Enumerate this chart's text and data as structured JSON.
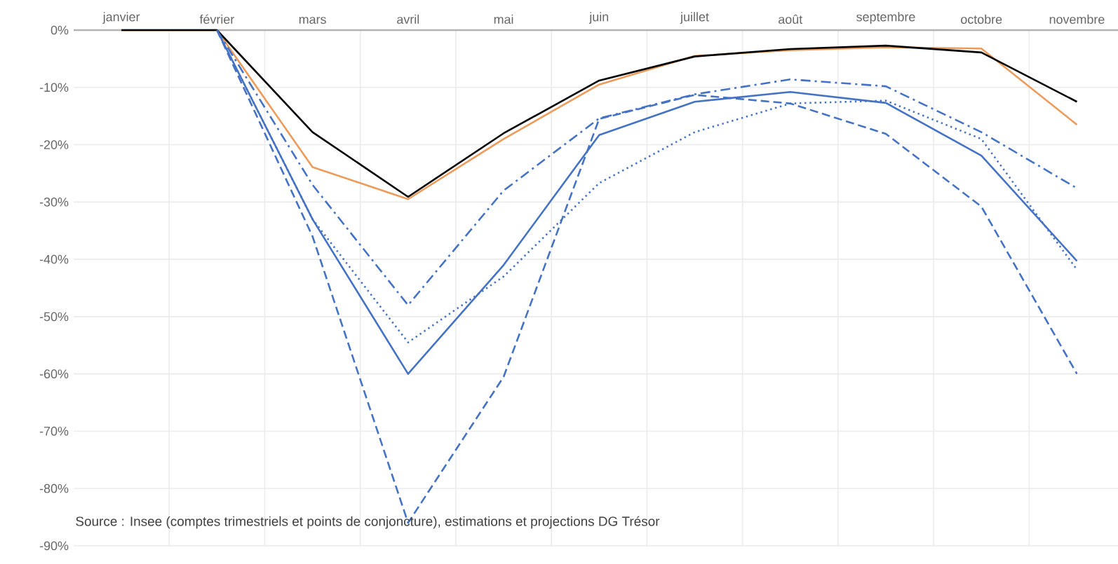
{
  "chart_data": {
    "type": "line",
    "categories": [
      "janvier",
      "février",
      "mars",
      "avril",
      "mai",
      "juin",
      "juillet",
      "août",
      "septembre",
      "octobre",
      "novembre"
    ],
    "series": [
      {
        "color": "#ed9b5a",
        "line_style": "solid",
        "values": [
          0,
          0,
          -23.9,
          -29.5,
          -19,
          -9.5,
          -4.5,
          -3.5,
          -3,
          -3.2,
          -16.5
        ]
      },
      {
        "color": "#000000",
        "line_style": "solid",
        "values": [
          0,
          0,
          -17.8,
          -29.1,
          -18,
          -8.8,
          -4.6,
          -3.3,
          -2.7,
          -3.9,
          -12.5
        ]
      },
      {
        "color": "#4472c4",
        "line_style": "solid",
        "values": [
          null,
          0,
          -33,
          -60,
          -41,
          -18.3,
          -12.5,
          -10.8,
          -12.7,
          -21.9,
          -40.3
        ]
      },
      {
        "color": "#4472c4",
        "line_style": "dotted",
        "values": [
          null,
          0,
          -33,
          -54.5,
          -43,
          -26.7,
          -17.8,
          -12.8,
          -12.3,
          -19,
          -41.8
        ]
      },
      {
        "color": "#4472c4",
        "line_style": "dashed",
        "values": [
          null,
          0,
          -36,
          -86,
          -60.5,
          -15.5,
          -11.3,
          -12.8,
          -18.1,
          -30.8,
          -60
        ]
      },
      {
        "color": "#4472c4",
        "line_style": "dashdot",
        "values": [
          null,
          0,
          -27,
          -48,
          -28,
          -15.4,
          -11.2,
          -8.6,
          -9.8,
          -17.8,
          -27.6
        ]
      }
    ],
    "ylim": [
      -90,
      0
    ],
    "yticks": [
      {
        "value": 0,
        "label": "0%"
      },
      {
        "value": -10,
        "label": "-10%"
      },
      {
        "value": -20,
        "label": "-20%"
      },
      {
        "value": -30,
        "label": "-30%"
      },
      {
        "value": -40,
        "label": "-40%"
      },
      {
        "value": -50,
        "label": "-50%"
      },
      {
        "value": -60,
        "label": "-60%"
      },
      {
        "value": -70,
        "label": "-70%"
      },
      {
        "value": -80,
        "label": "-80%"
      },
      {
        "value": -90,
        "label": "-90%"
      }
    ],
    "grid": true,
    "annotations": [
      "Source : Insee (comptes trimestriels et points de conjoncture), estimations et projections DG Trésor"
    ]
  }
}
